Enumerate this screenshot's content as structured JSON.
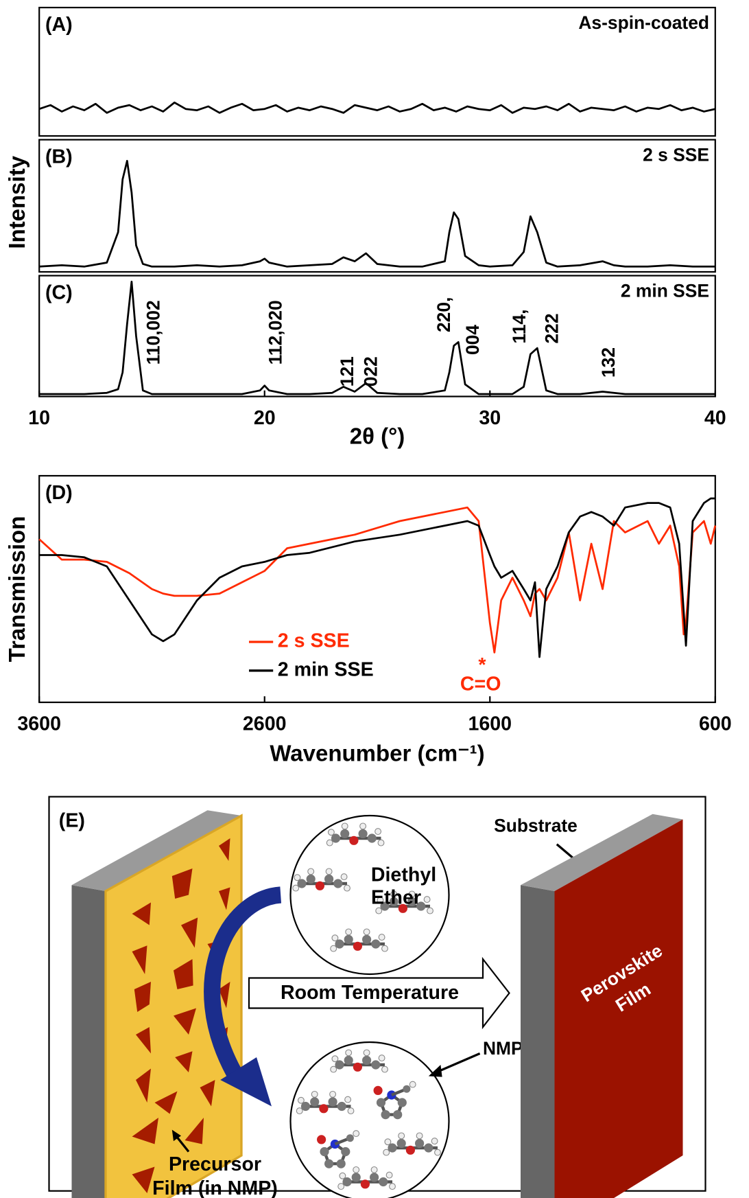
{
  "chart_data": [
    {
      "type": "line",
      "label": "(A)",
      "name": "As-spin-coated",
      "color": "#000000",
      "xlim": [
        10,
        40
      ],
      "ylim": [
        0,
        1
      ],
      "x": [
        10,
        10.5,
        11,
        11.5,
        12,
        12.5,
        13,
        13.5,
        14,
        14.5,
        15,
        15.5,
        16,
        16.5,
        17,
        17.5,
        18,
        18.5,
        19,
        19.5,
        20,
        20.5,
        21,
        21.5,
        22,
        22.5,
        23,
        23.5,
        24,
        24.5,
        25,
        25.5,
        26,
        26.5,
        27,
        27.5,
        28,
        28.5,
        29,
        29.5,
        30,
        30.5,
        31,
        31.5,
        32,
        32.5,
        33,
        33.5,
        34,
        34.5,
        35,
        35.5,
        36,
        36.5,
        37,
        37.5,
        38,
        38.5,
        39,
        39.5,
        40
      ],
      "values": [
        0.21,
        0.24,
        0.19,
        0.23,
        0.2,
        0.25,
        0.18,
        0.22,
        0.24,
        0.2,
        0.23,
        0.19,
        0.26,
        0.21,
        0.2,
        0.23,
        0.18,
        0.22,
        0.25,
        0.2,
        0.21,
        0.24,
        0.19,
        0.22,
        0.2,
        0.23,
        0.21,
        0.18,
        0.24,
        0.22,
        0.2,
        0.23,
        0.19,
        0.21,
        0.25,
        0.2,
        0.22,
        0.19,
        0.23,
        0.21,
        0.2,
        0.24,
        0.18,
        0.22,
        0.21,
        0.23,
        0.2,
        0.25,
        0.19,
        0.22,
        0.21,
        0.2,
        0.23,
        0.19,
        0.22,
        0.21,
        0.24,
        0.2,
        0.22,
        0.19,
        0.21
      ]
    },
    {
      "type": "line",
      "label": "(B)",
      "name": "2 s SSE",
      "y_label": "Intensity",
      "color": "#000000",
      "xlim": [
        10,
        40
      ],
      "ylim": [
        0,
        1
      ],
      "x": [
        10,
        11,
        12,
        13,
        13.5,
        13.7,
        13.9,
        14.1,
        14.3,
        14.6,
        15,
        16,
        17,
        18,
        19,
        19.8,
        20,
        20.2,
        21,
        22,
        23,
        23.5,
        24,
        24.5,
        25,
        26,
        27,
        28,
        28.2,
        28.4,
        28.6,
        28.9,
        29.5,
        30,
        31,
        31.5,
        31.8,
        32.1,
        32.5,
        33,
        34,
        35,
        35.5,
        36,
        37,
        38,
        39,
        40
      ],
      "values": [
        0.04,
        0.05,
        0.04,
        0.07,
        0.3,
        0.7,
        0.84,
        0.6,
        0.2,
        0.06,
        0.04,
        0.04,
        0.05,
        0.04,
        0.05,
        0.08,
        0.1,
        0.07,
        0.04,
        0.05,
        0.06,
        0.11,
        0.08,
        0.14,
        0.06,
        0.04,
        0.04,
        0.08,
        0.3,
        0.45,
        0.4,
        0.12,
        0.05,
        0.04,
        0.05,
        0.15,
        0.42,
        0.3,
        0.07,
        0.04,
        0.05,
        0.08,
        0.05,
        0.04,
        0.04,
        0.05,
        0.04,
        0.04
      ]
    },
    {
      "type": "line",
      "label": "(C)",
      "name": "2 min SSE",
      "x_label": "2θ (°)",
      "color": "#000000",
      "xlim": [
        10,
        40
      ],
      "ylim": [
        0,
        1
      ],
      "xticks": [
        10,
        20,
        30,
        40
      ],
      "peak_labels": [
        "110,002",
        "112,020",
        "121",
        "022",
        "220,",
        "004",
        "114,",
        "222",
        "132"
      ],
      "x": [
        10,
        11,
        12,
        13,
        13.5,
        13.7,
        13.9,
        14.1,
        14.3,
        14.6,
        15,
        16,
        17,
        18,
        19,
        19.8,
        20,
        20.2,
        21,
        22,
        23,
        23.5,
        24,
        24.5,
        25,
        26,
        27,
        28,
        28.2,
        28.4,
        28.6,
        28.9,
        29.5,
        30,
        31,
        31.5,
        31.8,
        32.1,
        32.5,
        33,
        34,
        35,
        35.5,
        36,
        37,
        38,
        39,
        40
      ],
      "values": [
        0.02,
        0.02,
        0.02,
        0.03,
        0.06,
        0.2,
        0.6,
        0.95,
        0.5,
        0.05,
        0.02,
        0.02,
        0.02,
        0.02,
        0.02,
        0.05,
        0.09,
        0.05,
        0.02,
        0.02,
        0.03,
        0.08,
        0.04,
        0.11,
        0.03,
        0.02,
        0.02,
        0.05,
        0.2,
        0.42,
        0.45,
        0.1,
        0.02,
        0.02,
        0.02,
        0.08,
        0.35,
        0.4,
        0.05,
        0.02,
        0.02,
        0.04,
        0.03,
        0.02,
        0.02,
        0.02,
        0.02,
        0.02
      ]
    },
    {
      "type": "line",
      "label": "(D)",
      "x_label": "Wavenumber (cm⁻¹)",
      "y_label": "Transmission",
      "annotation": "C=O",
      "annotation_mark": "*",
      "xlim": [
        3600,
        600
      ],
      "ylim": [
        0,
        1
      ],
      "xticks": [
        3600,
        2600,
        1600,
        600
      ],
      "x": [
        3600,
        3500,
        3400,
        3300,
        3200,
        3100,
        3050,
        3000,
        2900,
        2800,
        2700,
        2600,
        2500,
        2400,
        2200,
        2000,
        1800,
        1700,
        1650,
        1600,
        1580,
        1550,
        1500,
        1450,
        1420,
        1400,
        1380,
        1350,
        1300,
        1250,
        1200,
        1150,
        1100,
        1050,
        1000,
        900,
        850,
        800,
        760,
        740,
        730,
        700,
        650,
        620,
        600
      ],
      "series": [
        {
          "name": "2 s SSE",
          "color": "#ff2a00",
          "values": [
            0.72,
            0.63,
            0.63,
            0.62,
            0.57,
            0.5,
            0.48,
            0.47,
            0.47,
            0.48,
            0.53,
            0.58,
            0.68,
            0.7,
            0.74,
            0.8,
            0.84,
            0.86,
            0.8,
            0.35,
            0.22,
            0.45,
            0.55,
            0.45,
            0.38,
            0.48,
            0.5,
            0.45,
            0.55,
            0.75,
            0.45,
            0.7,
            0.5,
            0.8,
            0.75,
            0.8,
            0.7,
            0.78,
            0.6,
            0.3,
            0.35,
            0.75,
            0.8,
            0.7,
            0.78
          ]
        },
        {
          "name": "2 min SSE",
          "color": "#000000",
          "values": [
            0.65,
            0.65,
            0.64,
            0.6,
            0.45,
            0.3,
            0.27,
            0.3,
            0.45,
            0.55,
            0.6,
            0.62,
            0.65,
            0.66,
            0.71,
            0.74,
            0.78,
            0.8,
            0.78,
            0.65,
            0.6,
            0.55,
            0.58,
            0.5,
            0.45,
            0.53,
            0.2,
            0.5,
            0.6,
            0.75,
            0.82,
            0.84,
            0.82,
            0.78,
            0.86,
            0.88,
            0.88,
            0.86,
            0.7,
            0.4,
            0.25,
            0.8,
            0.88,
            0.9,
            0.9
          ]
        }
      ]
    }
  ],
  "diagram": {
    "label": "(E)",
    "substrate": "Substrate",
    "solvent": [
      "Diethyl",
      "Ether"
    ],
    "process": "Room Temperature",
    "solvent2": "NMP",
    "product": [
      "Perovskite",
      "Film"
    ],
    "precursor": [
      "Precursor",
      "Film (in NMP)"
    ]
  }
}
